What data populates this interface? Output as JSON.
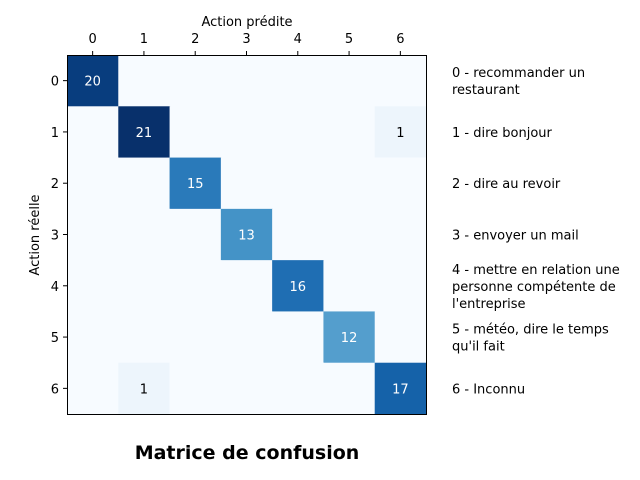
{
  "chart_data": {
    "type": "heatmap",
    "title": "Matrice de confusion",
    "xlabel": "Action prédite",
    "ylabel": "Action réelle",
    "x_tick_labels": [
      "0",
      "1",
      "2",
      "3",
      "4",
      "5",
      "6"
    ],
    "y_tick_labels": [
      "0",
      "1",
      "2",
      "3",
      "4",
      "5",
      "6"
    ],
    "matrix": [
      [
        20,
        0,
        0,
        0,
        0,
        0,
        0
      ],
      [
        0,
        21,
        0,
        0,
        0,
        0,
        1
      ],
      [
        0,
        0,
        15,
        0,
        0,
        0,
        0
      ],
      [
        0,
        0,
        0,
        13,
        0,
        0,
        0
      ],
      [
        0,
        0,
        0,
        0,
        16,
        0,
        0
      ],
      [
        0,
        0,
        0,
        0,
        0,
        12,
        0
      ],
      [
        0,
        1,
        0,
        0,
        0,
        0,
        17
      ]
    ],
    "value_range": [
      0,
      21
    ],
    "colormap": "Blues",
    "x_axis_position": "top",
    "legend": {
      "placement": "right",
      "entries": [
        "0 - recommander un restaurant",
        "1 - dire bonjour",
        "2 - dire au revoir",
        "3 - envoyer un mail",
        "4 - mettre en relation une personne compétente de l'entreprise",
        "5 - météo, dire le temps qu'il fait",
        "6 - Inconnu"
      ]
    }
  }
}
